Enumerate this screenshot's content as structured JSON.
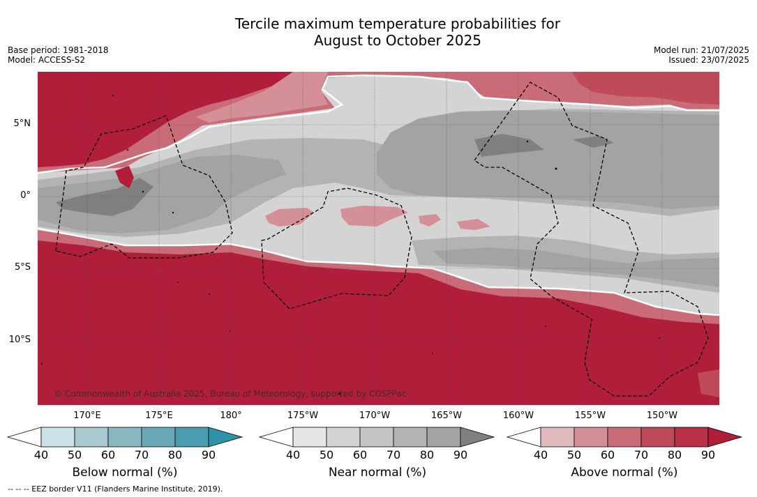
{
  "title_line1": "Tercile maximum temperature probabilities for",
  "title_line2": "August to October 2025",
  "left_meta": {
    "base_period": "Base period: 1981-2018",
    "model": "Model: ACCESS-S2"
  },
  "right_meta": {
    "model_run": "Model run: 21/07/2025",
    "issued": "Issued: 23/07/2025"
  },
  "lat_labels": [
    "5°N",
    "0°",
    "5°S",
    "10°S"
  ],
  "lon_labels": [
    "170°E",
    "175°E",
    "180°",
    "175°W",
    "170°W",
    "165°W",
    "160°W",
    "155°W",
    "150°W"
  ],
  "copyright": "© Commonwealth of Australia 2025, Bureau of Meteorology, supported by COSPPac",
  "colorbars": [
    {
      "label": "Below normal (%)",
      "ticks": [
        "40",
        "50",
        "60",
        "70",
        "80",
        "90"
      ],
      "colors": [
        "#ffffff",
        "#c9e1e7",
        "#a7c9cf",
        "#88b6c1",
        "#69a9b7",
        "#4a9daf",
        "#2e93a8"
      ]
    },
    {
      "label": "Near normal (%)",
      "ticks": [
        "40",
        "50",
        "60",
        "70",
        "80",
        "90"
      ],
      "colors": [
        "#ffffff",
        "#e6e6e6",
        "#d4d4d4",
        "#c4c4c4",
        "#b3b3b3",
        "#a3a3a3",
        "#808080"
      ]
    },
    {
      "label": "Above normal (%)",
      "ticks": [
        "40",
        "50",
        "60",
        "70",
        "80",
        "90"
      ],
      "colors": [
        "#ffffff",
        "#e0b9be",
        "#d58f97",
        "#c96c78",
        "#bf4a5a",
        "#b73045",
        "#b01e3a"
      ]
    }
  ],
  "footnote": "--  --  -- EEZ border V11 (Flanders Marine Institute, 2019)."
}
